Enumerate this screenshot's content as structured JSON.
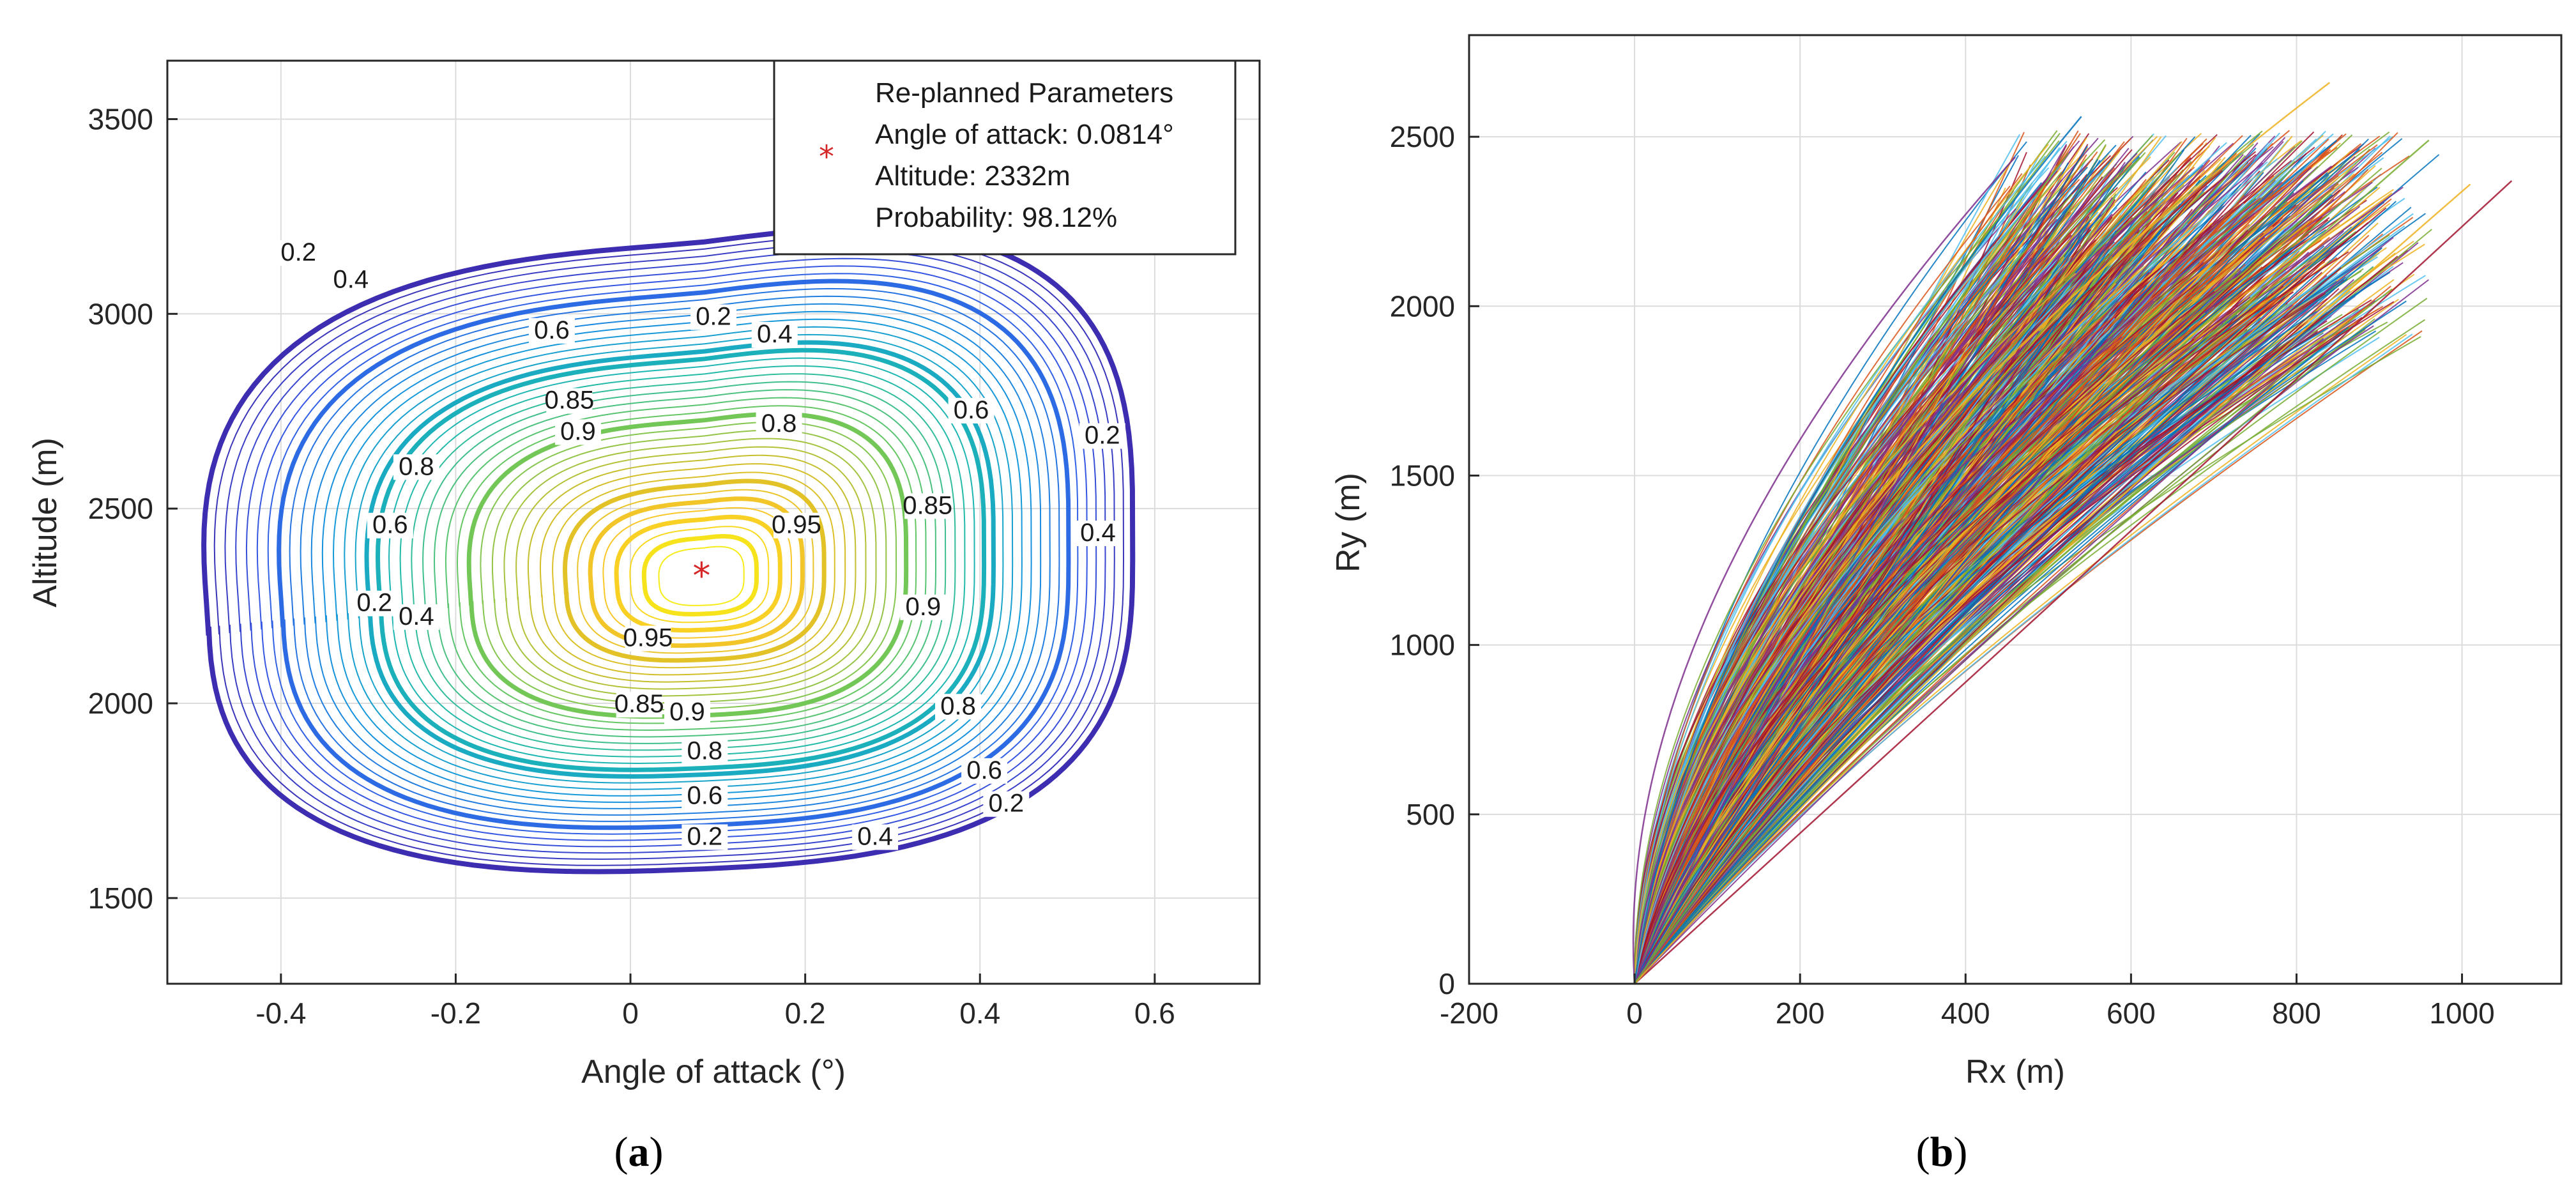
{
  "chart_data": [
    {
      "panel": "(a)",
      "panel_letter": "a",
      "type": "contour",
      "xlabel": "Angle of attack (°)",
      "ylabel": "Altitude (m)",
      "xlim": [
        -0.53,
        0.72
      ],
      "ylim": [
        1280,
        3650
      ],
      "xticks": [
        -0.4,
        -0.2,
        0,
        0.2,
        0.4,
        0.6
      ],
      "xtick_labels": [
        "-0.4",
        "-0.2",
        "0",
        "0.2",
        "0.4",
        "0.6"
      ],
      "yticks": [
        1500,
        2000,
        2500,
        3000,
        3500
      ],
      "ytick_labels": [
        "1500",
        "2000",
        "2500",
        "3000",
        "3500"
      ],
      "grid": true,
      "optimum": {
        "x": 0.0814,
        "y": 2332,
        "marker": "*",
        "color": "#d62728"
      },
      "contour_levels": [
        0.2,
        0.4,
        0.6,
        0.8,
        0.85,
        0.9,
        0.95
      ],
      "contour_labels": [
        {
          "text": "0.2",
          "x": -0.38,
          "y": 3140
        },
        {
          "text": "0.4",
          "x": -0.32,
          "y": 3070
        },
        {
          "text": "0.2",
          "x": 0.095,
          "y": 2975
        },
        {
          "text": "0.4",
          "x": 0.165,
          "y": 2930
        },
        {
          "text": "0.6",
          "x": -0.09,
          "y": 2940
        },
        {
          "text": "0.85",
          "x": -0.07,
          "y": 2760
        },
        {
          "text": "0.8",
          "x": 0.17,
          "y": 2700
        },
        {
          "text": "0.9",
          "x": -0.06,
          "y": 2680
        },
        {
          "text": "0.6",
          "x": 0.39,
          "y": 2735
        },
        {
          "text": "0.2",
          "x": 0.54,
          "y": 2670
        },
        {
          "text": "0.8",
          "x": -0.245,
          "y": 2590
        },
        {
          "text": "0.85",
          "x": 0.34,
          "y": 2490
        },
        {
          "text": "0.95",
          "x": 0.19,
          "y": 2440
        },
        {
          "text": "0.6",
          "x": -0.275,
          "y": 2440
        },
        {
          "text": "0.4",
          "x": 0.535,
          "y": 2420
        },
        {
          "text": "0.2",
          "x": -0.293,
          "y": 2240
        },
        {
          "text": "0.4",
          "x": -0.245,
          "y": 2205
        },
        {
          "text": "0.9",
          "x": 0.335,
          "y": 2230
        },
        {
          "text": "0.95",
          "x": 0.02,
          "y": 2150
        },
        {
          "text": "0.85",
          "x": 0.01,
          "y": 1980
        },
        {
          "text": "0.9",
          "x": 0.065,
          "y": 1960
        },
        {
          "text": "0.8",
          "x": 0.375,
          "y": 1975
        },
        {
          "text": "0.8",
          "x": 0.085,
          "y": 1860
        },
        {
          "text": "0.6",
          "x": 0.085,
          "y": 1745
        },
        {
          "text": "0.6",
          "x": 0.405,
          "y": 1810
        },
        {
          "text": "0.2",
          "x": 0.085,
          "y": 1640
        },
        {
          "text": "0.4",
          "x": 0.28,
          "y": 1640
        },
        {
          "text": "0.2",
          "x": 0.43,
          "y": 1725
        }
      ],
      "legend": {
        "placement": "top-right",
        "title": "Re-planned Parameters",
        "lines": [
          "Angle of attack: 0.0814°",
          "Altitude: 2332m",
          "Probability: 98.12%"
        ]
      }
    },
    {
      "panel": "(b)",
      "panel_letter": "b",
      "type": "line",
      "description_lines": "Monte Carlo trajectories from origin",
      "xlabel": "Rx (m)",
      "ylabel": "Ry (m)",
      "xlim": [
        -200,
        1120
      ],
      "ylim": [
        0,
        2800
      ],
      "xticks": [
        -200,
        0,
        200,
        400,
        600,
        800,
        1000
      ],
      "xtick_labels": [
        "-200",
        "0",
        "200",
        "400",
        "600",
        "800",
        "1000"
      ],
      "yticks": [
        0,
        500,
        1000,
        1500,
        2000,
        2500
      ],
      "ytick_labels": [
        "0",
        "500",
        "1000",
        "1500",
        "2000",
        "2500"
      ],
      "grid": true,
      "series_colors": [
        "#0072BD",
        "#D95319",
        "#EDB120",
        "#7E2F8E",
        "#77AC30",
        "#4DBEEE",
        "#A2142F"
      ],
      "trajectory_envelope": {
        "min_rx": -130,
        "max_rx": 1060,
        "max_ry": 2660
      },
      "example_trajectories": [
        {
          "end": [
            840,
            2660
          ],
          "bulge": -130,
          "color": "#EDB120"
        },
        {
          "end": [
            1060,
            2370
          ],
          "bulge": 180,
          "color": "#A2142F"
        },
        {
          "end": [
            1010,
            2360
          ],
          "bulge": 120,
          "color": "#EDB120"
        },
        {
          "end": [
            460,
            2440
          ],
          "bulge": -120,
          "color": "#7E2F8E"
        },
        {
          "end": [
            960,
            2490
          ],
          "bulge": 60,
          "color": "#77AC30"
        },
        {
          "end": [
            540,
            2560
          ],
          "bulge": -60,
          "color": "#0072BD"
        }
      ]
    }
  ]
}
